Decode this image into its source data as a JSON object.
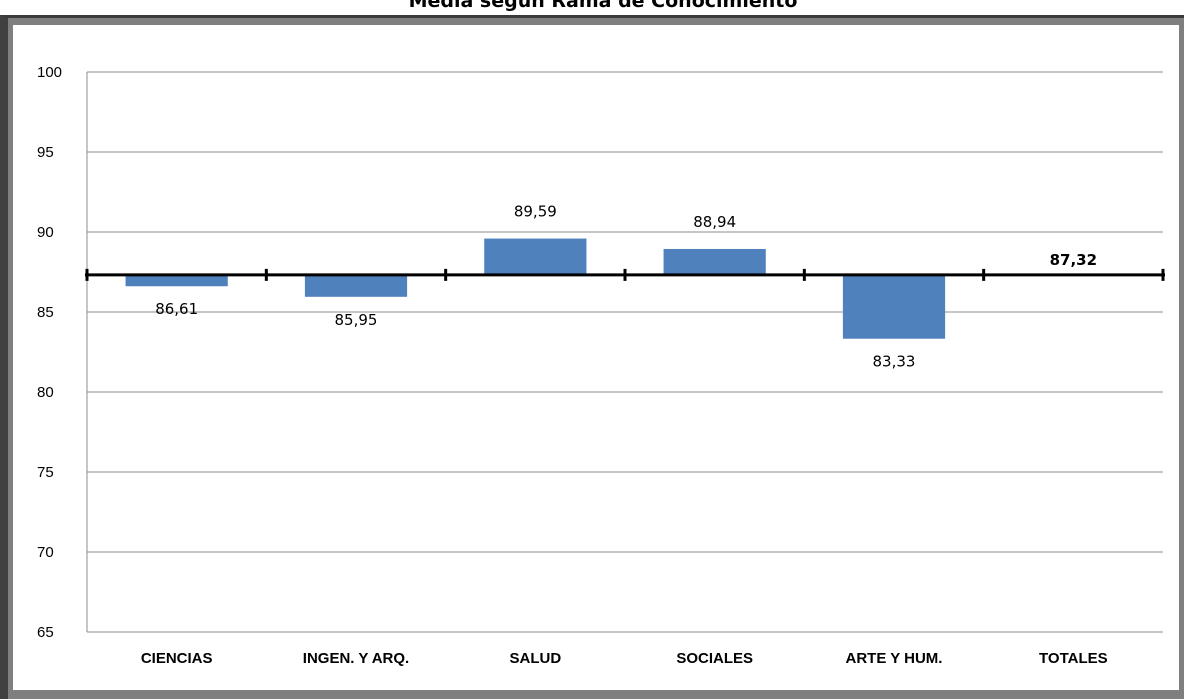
{
  "chart_data": {
    "type": "bar",
    "title": "Media según Rama de Conocimiento",
    "xlabel": "",
    "ylabel": "",
    "ylim": [
      65,
      100
    ],
    "yticks": [
      65,
      70,
      75,
      80,
      85,
      90,
      95,
      100
    ],
    "baseline": 87.32,
    "grid": true,
    "legend": "none",
    "categories": [
      "CIENCIAS",
      "INGEN. Y ARQ.",
      "SALUD",
      "SOCIALES",
      "ARTE Y HUM.",
      "TOTALES"
    ],
    "series": [
      {
        "values": [
          86.61,
          85.95,
          89.59,
          88.94,
          83.33,
          null
        ],
        "data_labels": [
          "86,61",
          "85,95",
          "89,59",
          "88,94",
          "83,33",
          "87,32"
        ]
      }
    ],
    "bar_color": "#4f81bd",
    "baseline_color": "#000000"
  }
}
